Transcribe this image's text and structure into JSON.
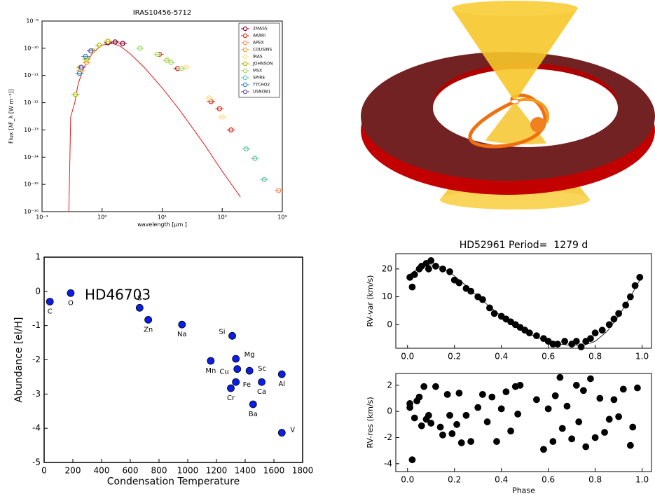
{
  "chart_data": [
    {
      "type": "line",
      "title": "IRAS10456-5712",
      "xlabel": "wavelength [μm ]",
      "ylabel": "Flux [λF_λ [W m⁻²]]",
      "xscale": "log",
      "yscale": "log",
      "xlim": [
        0.1,
        1000
      ],
      "ylim": [
        1e-16,
        1e-09
      ],
      "xticks": [
        {
          "value": 0.1,
          "label": "10⁻¹"
        },
        {
          "value": 1,
          "label": "10⁰"
        },
        {
          "value": 10,
          "label": "10¹"
        },
        {
          "value": 100,
          "label": "10²"
        },
        {
          "value": 1000,
          "label": "10³"
        }
      ],
      "yticks": [
        {
          "value": 1e-16,
          "label": "10⁻¹⁶"
        },
        {
          "value": 1e-15,
          "label": "10⁻¹⁵"
        },
        {
          "value": 1e-14,
          "label": "10⁻¹⁴"
        },
        {
          "value": 1e-13,
          "label": "10⁻¹³"
        },
        {
          "value": 1e-12,
          "label": "10⁻¹²"
        },
        {
          "value": 1e-11,
          "label": "10⁻¹¹"
        },
        {
          "value": 1e-10,
          "label": "10⁻¹⁰"
        },
        {
          "value": 1e-09,
          "label": "10⁻⁹"
        }
      ],
      "legend": "upper right",
      "series": [
        {
          "color": "#e31a1c",
          "style": "line",
          "x": [
            0.28,
            0.3,
            0.35,
            0.4,
            0.5,
            0.7,
            1,
            1.5,
            2,
            3,
            5,
            10,
            20,
            50,
            100,
            200
          ],
          "values": [
            1e-16,
            3e-13,
            1e-12,
            5e-12,
            2e-11,
            7e-11,
            1.3e-10,
            1.5e-10,
            1.2e-10,
            6e-11,
            2e-11,
            3.5e-12,
            5e-13,
            3e-14,
            3e-15,
            3.5e-16
          ]
        },
        {
          "name": "2MASS",
          "color": "#800026",
          "style": "markers",
          "x": [
            1.25,
            1.65,
            2.2
          ],
          "values": [
            1.6e-10,
            1.7e-10,
            1.5e-10
          ]
        },
        {
          "name": "AKARI",
          "color": "#d7301f",
          "style": "markers",
          "x": [
            9,
            18,
            65,
            90,
            140
          ],
          "values": [
            6e-11,
            1.8e-11,
            1.1e-12,
            6e-13,
            1e-13
          ]
        },
        {
          "name": "APEX",
          "color": "#fc8d59",
          "style": "markers",
          "x": [
            870
          ],
          "values": [
            6e-16
          ]
        },
        {
          "name": "COUSINS",
          "color": "#f59e42",
          "style": "markers",
          "x": [
            0.44,
            0.55
          ],
          "values": [
            1.5e-11,
            3e-11
          ]
        },
        {
          "name": "IRAS",
          "color": "#fee08b",
          "style": "markers",
          "x": [
            12,
            25,
            60,
            100
          ],
          "values": [
            4e-11,
            2e-11,
            1.5e-12,
            3e-13
          ]
        },
        {
          "name": "JOHNSON",
          "color": "#b8b800",
          "style": "markers",
          "x": [
            0.36,
            0.44,
            0.55,
            0.7,
            0.9,
            1.25
          ],
          "values": [
            2e-12,
            2e-11,
            4e-11,
            8e-11,
            1.3e-10,
            1.8e-10
          ]
        },
        {
          "name": "MSX",
          "color": "#a6d96a",
          "style": "markers",
          "x": [
            4.3,
            8.3,
            12,
            14,
            21
          ],
          "values": [
            1e-10,
            6e-11,
            3.5e-11,
            3e-11,
            1.8e-11
          ]
        },
        {
          "name": "SPIRE",
          "color": "#66c2a5",
          "style": "markers",
          "x": [
            250,
            350,
            500
          ],
          "values": [
            2e-14,
            9e-15,
            1.5e-15
          ]
        },
        {
          "name": "TYCHO2",
          "color": "#3288bd",
          "style": "markers",
          "x": [
            0.42,
            0.53
          ],
          "values": [
            1.2e-11,
            5e-11
          ]
        },
        {
          "name": "USNOB1",
          "color": "#5e4fa2",
          "style": "markers",
          "x": [
            0.45,
            0.65
          ],
          "values": [
            2e-11,
            8e-11
          ]
        }
      ]
    },
    {
      "type": "scatter",
      "xlabel": "Condensation Temperature",
      "ylabel": "Abundance [el/H]",
      "annotation": "HD46703",
      "xlim": [
        0,
        1800
      ],
      "ylim": [
        -5,
        1
      ],
      "xticks": [
        0,
        200,
        400,
        600,
        800,
        1000,
        1200,
        1400,
        1600,
        1800
      ],
      "yticks": [
        -5,
        -4,
        -3,
        -2,
        -1,
        0,
        1
      ],
      "series": [
        {
          "color": "#0a1ee6",
          "style": "markers",
          "x": [
            40,
            185,
            665,
            725,
            960,
            1160,
            1310,
            1335,
            1345,
            1430,
            1335,
            1300,
            1515,
            1455,
            1655,
            1655
          ],
          "values": [
            -0.3,
            -0.05,
            -0.48,
            -0.83,
            -0.97,
            -2.03,
            -1.3,
            -1.97,
            -2.27,
            -2.32,
            -2.65,
            -2.83,
            -2.65,
            -3.3,
            -2.42,
            -4.13
          ],
          "point_labels": [
            "C",
            "O",
            "S",
            "Zn",
            "Na",
            "Mn",
            "Si",
            "Mg",
            "Cu",
            "Sc",
            "Fe",
            "Cr",
            "Ca",
            "Ba",
            "Al",
            "V"
          ]
        }
      ]
    },
    {
      "type": "scatter",
      "title": "HD52961 Period=  1279 d",
      "ylabel": "RV-var (km/s)",
      "xlim": [
        -0.05,
        1.04
      ],
      "ylim": [
        -8.5,
        25.5
      ],
      "xticks": [
        {
          "value": 0,
          "label": "0.0"
        },
        0.2,
        0.4,
        0.6,
        0.8,
        {
          "value": 1,
          "label": "1.0"
        }
      ],
      "yticks": [
        0,
        10,
        20
      ],
      "series": [
        {
          "color": "#000000",
          "style": "markers",
          "x": [
            0.01,
            0.02,
            0.03,
            0.05,
            0.06,
            0.08,
            0.09,
            0.1,
            0.12,
            0.15,
            0.18,
            0.2,
            0.22,
            0.25,
            0.27,
            0.3,
            0.32,
            0.35,
            0.37,
            0.4,
            0.42,
            0.44,
            0.46,
            0.48,
            0.5,
            0.52,
            0.55,
            0.58,
            0.6,
            0.62,
            0.64,
            0.67,
            0.7,
            0.72,
            0.74,
            0.76,
            0.78,
            0.8,
            0.83,
            0.86,
            0.88,
            0.9,
            0.93,
            0.95,
            0.97,
            0.99
          ],
          "values": [
            17,
            13.5,
            18,
            20,
            21,
            22,
            20,
            23,
            21,
            20,
            19,
            16,
            15,
            13,
            12,
            10,
            9,
            6,
            4,
            3,
            2,
            1,
            0,
            -1,
            -2,
            -3,
            -4,
            -5,
            -6,
            -7,
            -7,
            -6,
            -7,
            -6,
            -8,
            -6,
            -5,
            -3,
            -2,
            0,
            2,
            4,
            7,
            10,
            14,
            17
          ]
        },
        {
          "color": "#000000",
          "style": "line",
          "x": [
            0,
            0.05,
            0.1,
            0.15,
            0.2,
            0.25,
            0.3,
            0.35,
            0.4,
            0.45,
            0.5,
            0.55,
            0.6,
            0.65,
            0.7,
            0.75,
            0.8,
            0.85,
            0.9,
            0.95,
            1
          ],
          "values": [
            17.5,
            20.5,
            21.5,
            20.5,
            17.5,
            14,
            10,
            6.5,
            3,
            0,
            -2.5,
            -4.5,
            -6,
            -7,
            -7.5,
            -7.5,
            -6,
            -2.5,
            3,
            10,
            17.5
          ]
        }
      ]
    },
    {
      "type": "scatter",
      "xlabel": "Phase",
      "ylabel": "RV-res (km/s)",
      "xlim": [
        -0.05,
        1.04
      ],
      "ylim": [
        -4.6,
        2.9
      ],
      "xticks": [
        {
          "value": 0,
          "label": "0.0"
        },
        0.2,
        0.4,
        0.6,
        0.8,
        {
          "value": 1,
          "label": "1.0"
        }
      ],
      "yticks": [
        -4,
        -2,
        0,
        2
      ],
      "series": [
        {
          "color": "#000000",
          "style": "markers",
          "x": [
            0.01,
            0.01,
            0.02,
            0.03,
            0.04,
            0.05,
            0.06,
            0.07,
            0.08,
            0.09,
            0.1,
            0.12,
            0.14,
            0.15,
            0.17,
            0.18,
            0.19,
            0.21,
            0.22,
            0.23,
            0.25,
            0.27,
            0.3,
            0.32,
            0.34,
            0.36,
            0.38,
            0.4,
            0.42,
            0.44,
            0.46,
            0.47,
            0.48,
            0.55,
            0.58,
            0.6,
            0.62,
            0.63,
            0.65,
            0.66,
            0.68,
            0.7,
            0.72,
            0.73,
            0.75,
            0.76,
            0.78,
            0.8,
            0.82,
            0.84,
            0.86,
            0.88,
            0.9,
            0.92,
            0.95,
            0.96,
            0.98
          ],
          "values": [
            0.6,
            0.3,
            -3.7,
            -0.5,
            0.8,
            1.1,
            -1.1,
            1.9,
            -0.6,
            -0.3,
            -0.9,
            1.9,
            -1.2,
            -1.8,
            1.3,
            -0.3,
            -1.7,
            -1.0,
            1.4,
            -2.4,
            -0.3,
            -2.3,
            0.3,
            1.3,
            -0.8,
            1.1,
            -2.3,
            0.2,
            1.5,
            -1.5,
            1.9,
            -0.2,
            2.0,
            0.9,
            -2.9,
            0.2,
            -2.3,
            1.2,
            2.6,
            -1.3,
            0.4,
            -2.1,
            2.0,
            -0.8,
            1.6,
            -2.7,
            2.5,
            -2.0,
            1.0,
            -1.6,
            -0.6,
            0.9,
            -0.4,
            1.7,
            -2.6,
            -1.2,
            1.8
          ]
        }
      ]
    }
  ]
}
